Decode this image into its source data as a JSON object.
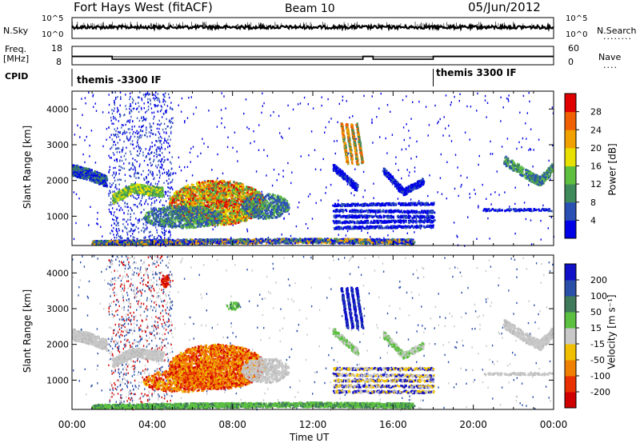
{
  "header": {
    "station": "Fort Hays West (fitACF)",
    "beam": "Beam 10",
    "date": "05/Jun/2012"
  },
  "left_labels": {
    "nsky": "N.Sky",
    "freq": "Freq.",
    "freq_unit": "[MHz]",
    "cpid": "CPID"
  },
  "right_labels": {
    "nsearch": "N.Search",
    "nave": "Nave"
  },
  "cpid_modes": [
    "themis -3300 IF",
    "themis 3300 IF"
  ],
  "chart_data": [
    {
      "type": "line",
      "name": "noise",
      "left_ticks": [
        "10^5",
        "10^0"
      ],
      "right_ticks": [
        "10^5",
        "10^0"
      ]
    },
    {
      "type": "line",
      "name": "frequency",
      "left_ticks": [
        "18",
        "8"
      ],
      "right_ticks": [
        "60",
        "0"
      ],
      "x_hours": [
        0,
        2,
        2,
        14.5,
        14.5,
        15,
        15,
        18,
        18,
        24
      ],
      "freq": [
        12.6,
        12.6,
        11.0,
        11.0,
        12.6,
        12.6,
        11.0,
        11.0,
        12.6,
        12.6
      ]
    },
    {
      "type": "heatmap",
      "name": "power",
      "ylabel": "Slant Range [km]",
      "ylim": [
        180,
        4500
      ],
      "yticks": [
        1000,
        2000,
        3000,
        4000
      ],
      "colorbar_label": "Power [dB]",
      "colorbar_ticks": [
        "4",
        "8",
        "12",
        "16",
        "20",
        "24",
        "28"
      ],
      "colors": [
        "#0000e6",
        "#2a50b4",
        "#3f8a5a",
        "#5fbf3f",
        "#e8e000",
        "#f0a000",
        "#f06000",
        "#e00000"
      ]
    },
    {
      "type": "heatmap",
      "name": "velocity",
      "ylabel": "Slant Range [km]",
      "ylim": [
        180,
        4500
      ],
      "yticks": [
        1000,
        2000,
        3000,
        4000
      ],
      "colorbar_label": "Velocity [m s⁻¹]",
      "colorbar_ticks": [
        "200",
        "100",
        "50",
        "15",
        "-15",
        "-50",
        "-100",
        "-200"
      ],
      "colors": [
        "#1010c8",
        "#2a4fa8",
        "#3f7a5a",
        "#5cc040",
        "#c8c8c8",
        "#f0c000",
        "#f08000",
        "#e83000",
        "#d00000"
      ]
    }
  ],
  "x_axis": {
    "ticks": [
      "00:00",
      "04:00",
      "08:00",
      "12:00",
      "16:00",
      "20:00",
      "00:00"
    ],
    "label": "Time UT"
  }
}
